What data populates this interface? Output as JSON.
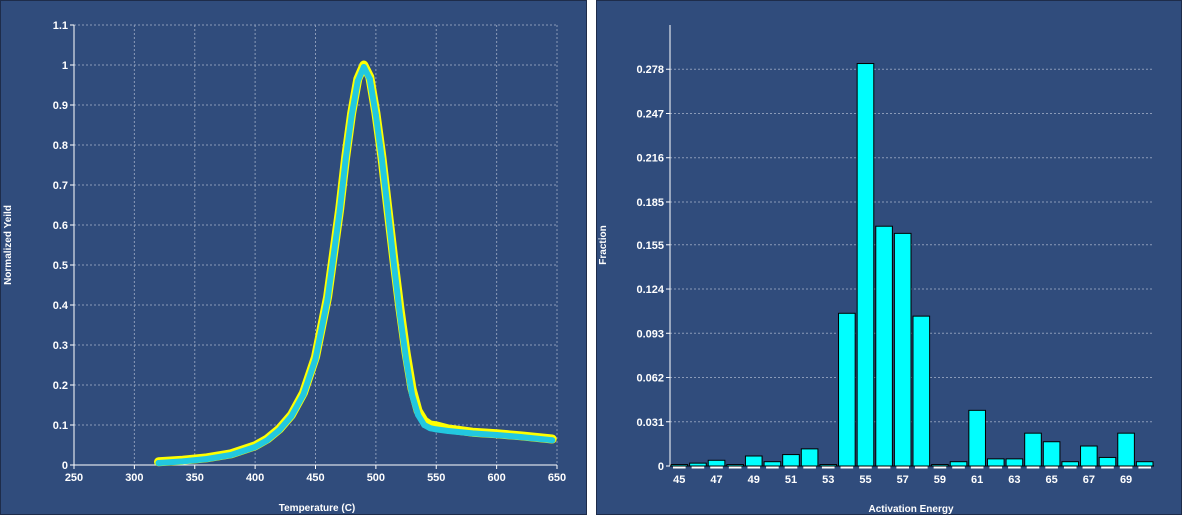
{
  "colors": {
    "background": "#304c7c",
    "axis": "#ffffff",
    "grid": "#8a9ab8",
    "curve_measured": "#ffff00",
    "curve_fit": "#22c8e0",
    "bar_fill": "#00ffff",
    "bar_stroke": "#000000"
  },
  "chart_data": [
    {
      "type": "scatter",
      "title": "",
      "xlabel": "Temperature (C)",
      "ylabel": "Normalized Yeild",
      "xlim": [
        250,
        650
      ],
      "ylim": [
        0,
        1.1
      ],
      "xticks": [
        "250",
        "300",
        "350",
        "400",
        "450",
        "500",
        "550",
        "600",
        "650"
      ],
      "yticks": [
        "0",
        "0.1",
        "0.2",
        "0.3",
        "0.4",
        "0.5",
        "0.6",
        "0.7",
        "0.8",
        "0.9",
        "1",
        "1.1"
      ],
      "grid": true,
      "series": [
        {
          "color": "#ffff00",
          "x": [
            320,
            340,
            360,
            380,
            400,
            410,
            420,
            430,
            440,
            450,
            460,
            470,
            475,
            480,
            485,
            490,
            495,
            500,
            505,
            510,
            515,
            520,
            525,
            530,
            535,
            540,
            545,
            550,
            560,
            580,
            600,
            620,
            646
          ],
          "y": [
            0.008,
            0.012,
            0.018,
            0.028,
            0.048,
            0.065,
            0.09,
            0.125,
            0.18,
            0.27,
            0.42,
            0.64,
            0.77,
            0.88,
            0.965,
            1.0,
            0.97,
            0.88,
            0.77,
            0.64,
            0.51,
            0.39,
            0.28,
            0.19,
            0.135,
            0.11,
            0.1,
            0.098,
            0.09,
            0.082,
            0.078,
            0.073,
            0.065
          ]
        },
        {
          "color": "#22c8e0",
          "x": [
            320,
            340,
            360,
            380,
            400,
            410,
            420,
            430,
            440,
            450,
            460,
            470,
            475,
            480,
            485,
            490,
            495,
            500,
            505,
            510,
            515,
            520,
            525,
            530,
            535,
            540,
            545,
            550,
            560,
            580,
            600,
            620,
            646
          ],
          "y": [
            0.005,
            0.009,
            0.015,
            0.025,
            0.045,
            0.062,
            0.087,
            0.122,
            0.176,
            0.265,
            0.415,
            0.635,
            0.765,
            0.875,
            0.96,
            0.995,
            0.965,
            0.875,
            0.765,
            0.635,
            0.5,
            0.375,
            0.265,
            0.175,
            0.125,
            0.1,
            0.092,
            0.089,
            0.085,
            0.079,
            0.075,
            0.07,
            0.062
          ]
        }
      ]
    },
    {
      "type": "bar",
      "title": "",
      "xlabel": "Activation Energy",
      "ylabel": "Fraction",
      "ylim": [
        0,
        0.309
      ],
      "yticks": [
        "0",
        "0.031",
        "0.062",
        "0.093",
        "0.124",
        "0.155",
        "0.185",
        "0.216",
        "0.247",
        "0.278"
      ],
      "xticks": [
        "45",
        "47",
        "49",
        "51",
        "53",
        "55",
        "57",
        "59",
        "61",
        "63",
        "65",
        "67",
        "69"
      ],
      "grid": true,
      "categories": [
        45,
        46,
        47,
        48,
        49,
        50,
        51,
        52,
        53,
        54,
        55,
        56,
        57,
        58,
        59,
        60,
        61,
        62,
        63,
        64,
        65,
        66,
        67,
        68,
        69,
        70
      ],
      "values": [
        0.001,
        0.002,
        0.004,
        0.001,
        0.007,
        0.003,
        0.008,
        0.012,
        0.001,
        0.107,
        0.282,
        0.168,
        0.163,
        0.105,
        0.001,
        0.003,
        0.039,
        0.005,
        0.005,
        0.023,
        0.017,
        0.003,
        0.014,
        0.006,
        0.023,
        0.003
      ]
    }
  ]
}
